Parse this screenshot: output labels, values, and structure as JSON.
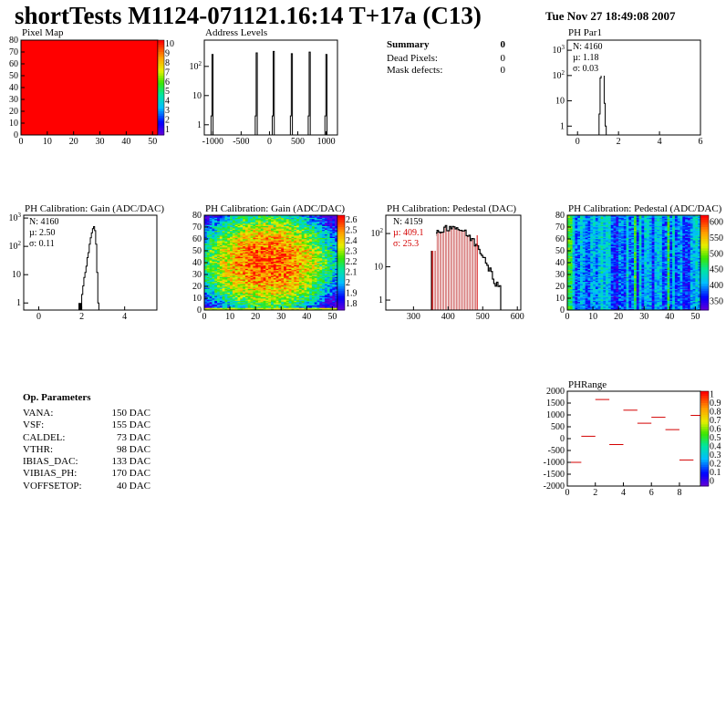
{
  "header": {
    "title": "shortTests M1124-071121.16:14 T+17a (C13)",
    "date": "Tue Nov 27 18:49:08 2007"
  },
  "summary": {
    "title": "Summary",
    "title_value": "0",
    "rows": [
      {
        "label": "Dead Pixels:",
        "value": "0"
      },
      {
        "label": "Mask defects:",
        "value": "0"
      }
    ]
  },
  "op_params": {
    "title": "Op. Parameters",
    "rows": [
      {
        "label": "VANA:",
        "value": "150 DAC"
      },
      {
        "label": "VSF:",
        "value": "155 DAC"
      },
      {
        "label": "CALDEL:",
        "value": "73 DAC"
      },
      {
        "label": "VTHR:",
        "value": "98 DAC"
      },
      {
        "label": "IBIAS_DAC:",
        "value": "133 DAC"
      },
      {
        "label": "VIBIAS_PH:",
        "value": "170 DAC"
      },
      {
        "label": "VOFFSETOP:",
        "value": "40 DAC"
      }
    ]
  },
  "colors": {
    "hist_line": "#000000",
    "fit_red": "#d40000",
    "hatch": "#b00000",
    "pixel_map": "#ff0000"
  },
  "chart_data": [
    {
      "id": "pixel-map",
      "type": "heatmap",
      "title": "Pixel Map",
      "xlim": [
        0,
        52
      ],
      "ylim": [
        0,
        80
      ],
      "xticks": [
        "0",
        "10",
        "20",
        "30",
        "40",
        "50"
      ],
      "yticks": [
        "0",
        "10",
        "20",
        "30",
        "40",
        "50",
        "60",
        "70",
        "80"
      ],
      "zticks": [
        "10",
        "9",
        "8",
        "7",
        "6",
        "5",
        "4",
        "3",
        "2",
        "1"
      ],
      "fill": "uniform",
      "value": 10
    },
    {
      "id": "address-levels",
      "type": "bar",
      "title": "Address Levels",
      "log_y": true,
      "xlim": [
        -1150,
        1200
      ],
      "xticks": [
        "-1000",
        "-500",
        "0",
        "500",
        "1000"
      ],
      "yticks": [
        "1",
        "10",
        "10²"
      ],
      "peaks_x": [
        -1005,
        -225,
        75,
        395,
        710,
        1005
      ],
      "peak_height": 300
    },
    {
      "id": "ph-par1",
      "type": "bar",
      "title": "PH Par1",
      "log_y": true,
      "xlim": [
        -0.5,
        6
      ],
      "xticks": [
        "0",
        "2",
        "4",
        "6"
      ],
      "yticks": [
        "1",
        "10",
        "10²",
        "10³"
      ],
      "stats": {
        "n": "N: 4160",
        "mu": "µ: 1.18",
        "sigma": "σ: 0.03"
      }
    },
    {
      "id": "ph-gain-hist",
      "type": "bar",
      "title": "PH Calibration: Gain (ADC/DAC)",
      "log_y": true,
      "xlim": [
        -0.7,
        5.5
      ],
      "xticks": [
        "0",
        "2",
        "4"
      ],
      "yticks": [
        "1",
        "10",
        "10²",
        "10³"
      ],
      "stats": {
        "n": "N: 4160",
        "mu": "µ: 2.50",
        "sigma": "σ: 0.11"
      }
    },
    {
      "id": "ph-gain-map",
      "type": "heatmap",
      "title": "PH Calibration: Gain (ADC/DAC)",
      "xlim": [
        0,
        52
      ],
      "ylim": [
        0,
        80
      ],
      "xticks": [
        "0",
        "10",
        "20",
        "30",
        "40",
        "50"
      ],
      "yticks": [
        "0",
        "10",
        "20",
        "30",
        "40",
        "50",
        "60",
        "70",
        "80"
      ],
      "zticks": [
        "2.6",
        "2.5",
        "2.4",
        "2.3",
        "2.2",
        "2.1",
        "2",
        "1.9",
        "1.8"
      ]
    },
    {
      "id": "ph-pedestal-hist",
      "type": "bar",
      "title": "PH Calibration: Pedestal (DAC)",
      "log_y": true,
      "xlim": [
        220,
        610
      ],
      "xticks": [
        "300",
        "400",
        "500",
        "600"
      ],
      "yticks": [
        "1",
        "10",
        "10²"
      ],
      "stats": {
        "n": "N: 4159",
        "mu": "µ: 409.1",
        "sigma": "σ: 25.3"
      },
      "fit_lines_x": [
        354,
        484
      ]
    },
    {
      "id": "ph-pedestal-map",
      "type": "heatmap",
      "title": "PH Calibration: Pedestal (ADC/DAC)",
      "xlim": [
        0,
        52
      ],
      "ylim": [
        0,
        80
      ],
      "xticks": [
        "0",
        "10",
        "20",
        "30",
        "40",
        "50"
      ],
      "yticks": [
        "0",
        "10",
        "20",
        "30",
        "40",
        "50",
        "60",
        "70",
        "80"
      ],
      "zticks": [
        "600",
        "550",
        "500",
        "450",
        "400",
        "350"
      ]
    },
    {
      "id": "ph-range",
      "type": "scatter",
      "title": "PHRange",
      "xlim": [
        0,
        9.5
      ],
      "ylim": [
        -2000,
        2000
      ],
      "xticks": [
        "0",
        "2",
        "4",
        "6",
        "8"
      ],
      "yticks": [
        "-2000",
        "-1500",
        "-1000",
        "-500",
        "0",
        "500",
        "1000",
        "1500",
        "2000"
      ],
      "zticks": [
        "1",
        "0.9",
        "0.8",
        "0.7",
        "0.6",
        "0.5",
        "0.4",
        "0.3",
        "0.2",
        "0.1",
        "0"
      ],
      "points": [
        {
          "x": 0.5,
          "y": -1000
        },
        {
          "x": 1.5,
          "y": 100
        },
        {
          "x": 2.5,
          "y": 1650
        },
        {
          "x": 3.5,
          "y": -250
        },
        {
          "x": 4.5,
          "y": 1200
        },
        {
          "x": 5.5,
          "y": 650
        },
        {
          "x": 6.5,
          "y": 900
        },
        {
          "x": 7.5,
          "y": 380
        },
        {
          "x": 8.5,
          "y": -900
        },
        {
          "x": 9.3,
          "y": 980
        }
      ]
    }
  ]
}
